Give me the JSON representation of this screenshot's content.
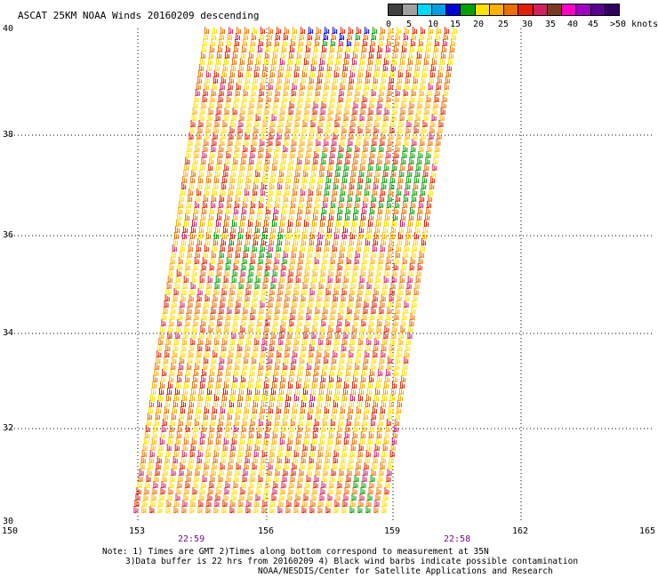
{
  "title": "ASCAT 25KM NOAA Winds 20160209 descending",
  "legend": {
    "labels": [
      "0",
      "5",
      "10",
      "15",
      "20",
      "25",
      "30",
      "35",
      "40",
      "45",
      ">50 knots"
    ],
    "colors": [
      "#404040",
      "#a0a0a0",
      "#00d8ff",
      "#00a0e0",
      "#0000d8",
      "#00a000",
      "#ffe000",
      "#ffb000",
      "#e87000",
      "#e02000",
      "#d02060",
      "#7a3a20",
      "#ff00c8",
      "#a000c0",
      "#5a0090",
      "#300060"
    ]
  },
  "axes": {
    "x_ticks": [
      "150",
      "153",
      "156",
      "159",
      "162",
      "165"
    ],
    "y_ticks": [
      "40",
      "38",
      "36",
      "34",
      "32",
      "30"
    ]
  },
  "times": [
    "22:59",
    "22:58"
  ],
  "notes": {
    "line1": "Note: 1) Times are GMT 2)Times along bottom correspond to measurement at 35N",
    "line2": "3)Data buffer is 22 hrs from 20160209 4) Black wind barbs indicate possible contamination",
    "line3": "NOAA/NESDIS/Center for Satellite Applications and Research"
  }
}
